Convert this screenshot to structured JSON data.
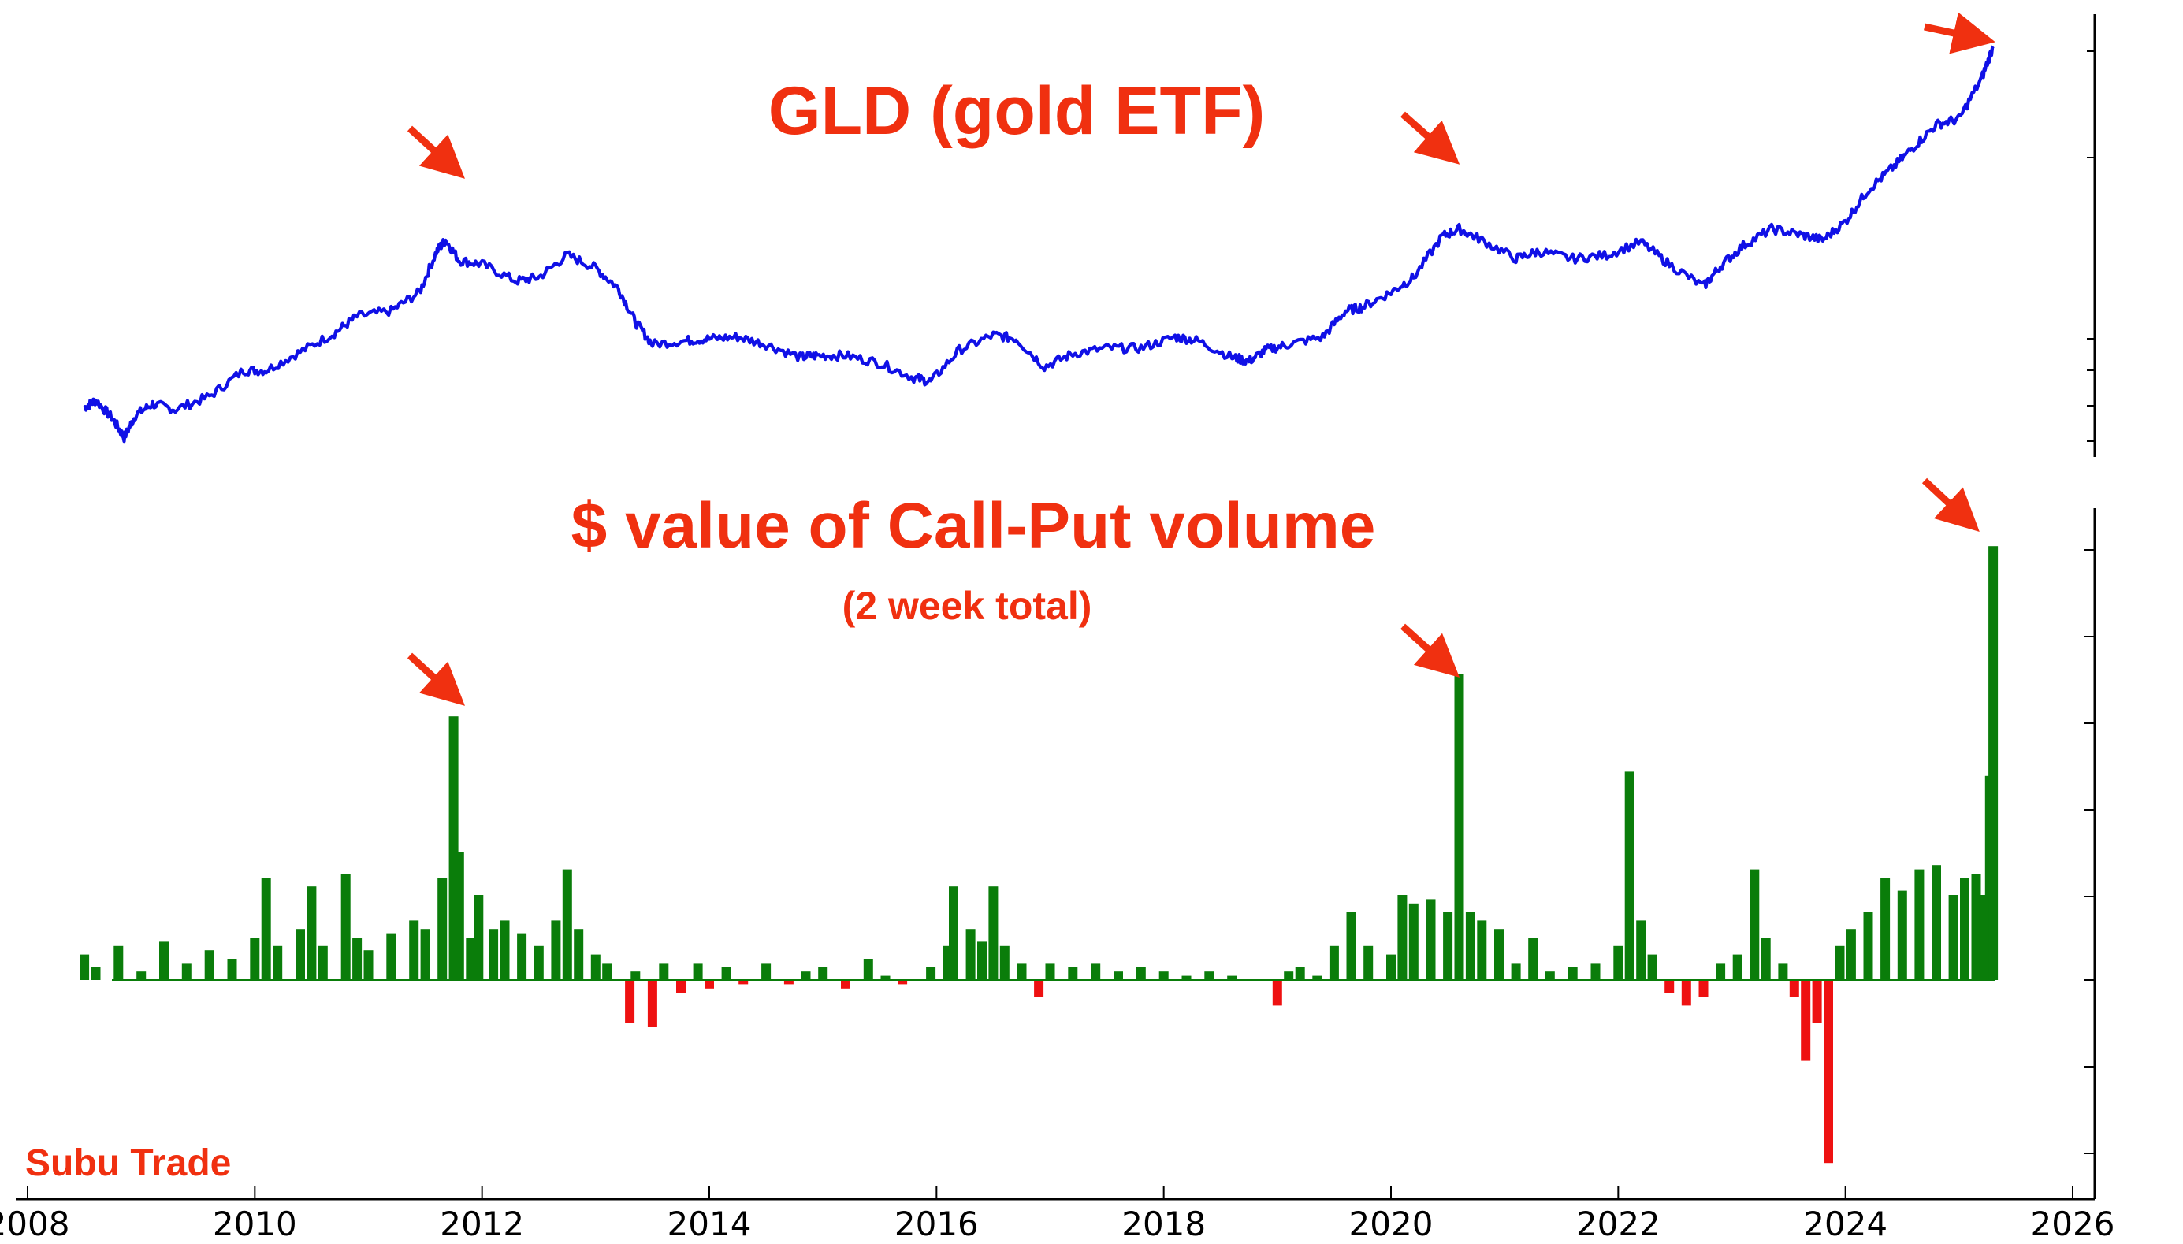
{
  "colors": {
    "price_line": "#1010e6",
    "positive_bar": "#0a7d0a",
    "negative_bar": "#ee1111",
    "annotation": "#f03010",
    "axis": "#000000"
  },
  "chart_data": [
    {
      "type": "line",
      "title": "GLD (gold ETF)",
      "xlabel": "",
      "ylabel": "",
      "xlim": [
        2008,
        2026
      ],
      "grid": false,
      "series": [
        {
          "name": "",
          "x": [
            2008.5,
            2008.6,
            2008.75,
            2008.85,
            2008.95,
            2009.1,
            2009.3,
            2009.6,
            2009.9,
            2010.1,
            2010.4,
            2010.7,
            2010.9,
            2011.2,
            2011.45,
            2011.6,
            2011.68,
            2011.8,
            2012.0,
            2012.3,
            2012.5,
            2012.75,
            2013.0,
            2013.2,
            2013.35,
            2013.5,
            2013.8,
            2014.0,
            2014.25,
            2014.5,
            2014.8,
            2014.95,
            2015.2,
            2015.5,
            2015.8,
            2015.95,
            2016.2,
            2016.5,
            2016.7,
            2016.95,
            2017.2,
            2017.5,
            2017.8,
            2018.1,
            2018.3,
            2018.6,
            2018.75,
            2018.9,
            2019.1,
            2019.4,
            2019.6,
            2019.75,
            2020.0,
            2020.2,
            2020.45,
            2020.6,
            2020.8,
            2021.1,
            2021.3,
            2021.6,
            2021.9,
            2022.2,
            2022.45,
            2022.75,
            2022.9,
            2023.1,
            2023.35,
            2023.6,
            2023.8,
            2024.0,
            2024.2,
            2024.4,
            2024.6,
            2024.8,
            2025.0,
            2025.2,
            2025.3
          ],
          "y": [
            88,
            92,
            82,
            72,
            84,
            90,
            87,
            94,
            108,
            108,
            118,
            128,
            137,
            140,
            150,
            172,
            178,
            167,
            165,
            156,
            158,
            170,
            163,
            152,
            134,
            122,
            124,
            125,
            126,
            122,
            115,
            116,
            116,
            112,
            104,
            102,
            119,
            127,
            125,
            110,
            117,
            120,
            120,
            126,
            124,
            115,
            113,
            119,
            122,
            126,
            140,
            142,
            150,
            158,
            180,
            184,
            178,
            168,
            172,
            168,
            170,
            177,
            165,
            153,
            164,
            175,
            184,
            181,
            178,
            188,
            205,
            216,
            228,
            240,
            243,
            265,
            282
          ]
        }
      ]
    },
    {
      "type": "bar",
      "title": "$ value of Call-Put volume",
      "subtitle": "(2 week total)",
      "xlabel": "",
      "ylabel": "",
      "xlim": [
        2008,
        2026
      ],
      "ylim": [
        -2.2,
        5.3
      ],
      "xticks": [
        "2008",
        "2010",
        "2012",
        "2014",
        "2016",
        "2018",
        "2020",
        "2022",
        "2024",
        "2026"
      ],
      "grid": false,
      "series": [
        {
          "name": "",
          "x": [
            2008.5,
            2008.6,
            2008.8,
            2009.0,
            2009.2,
            2009.4,
            2009.6,
            2009.8,
            2010.0,
            2010.1,
            2010.2,
            2010.4,
            2010.5,
            2010.6,
            2010.8,
            2010.9,
            2011.0,
            2011.2,
            2011.4,
            2011.5,
            2011.65,
            2011.75,
            2011.8,
            2011.9,
            2011.97,
            2012.1,
            2012.2,
            2012.35,
            2012.5,
            2012.65,
            2012.75,
            2012.85,
            2013.0,
            2013.1,
            2013.3,
            2013.35,
            2013.5,
            2013.6,
            2013.75,
            2013.9,
            2014.0,
            2014.15,
            2014.3,
            2014.5,
            2014.7,
            2014.85,
            2015.0,
            2015.2,
            2015.4,
            2015.55,
            2015.7,
            2015.95,
            2016.1,
            2016.15,
            2016.3,
            2016.4,
            2016.5,
            2016.6,
            2016.75,
            2016.9,
            2017.0,
            2017.2,
            2017.4,
            2017.6,
            2017.8,
            2018.0,
            2018.2,
            2018.4,
            2018.6,
            2018.8,
            2019.0,
            2019.1,
            2019.2,
            2019.35,
            2019.5,
            2019.65,
            2019.8,
            2020.0,
            2020.1,
            2020.2,
            2020.35,
            2020.5,
            2020.6,
            2020.7,
            2020.8,
            2020.95,
            2021.1,
            2021.25,
            2021.4,
            2021.6,
            2021.8,
            2022.0,
            2022.1,
            2022.2,
            2022.3,
            2022.45,
            2022.6,
            2022.75,
            2022.9,
            2023.05,
            2023.2,
            2023.3,
            2023.45,
            2023.55,
            2023.65,
            2023.75,
            2023.85,
            2023.95,
            2024.05,
            2024.2,
            2024.35,
            2024.5,
            2024.65,
            2024.8,
            2024.95,
            2025.05,
            2025.15,
            2025.22,
            2025.27,
            2025.3
          ],
          "y": [
            0.3,
            0.15,
            0.4,
            0.1,
            0.45,
            0.2,
            0.35,
            0.25,
            0.5,
            1.2,
            0.4,
            0.6,
            1.1,
            0.4,
            1.25,
            0.5,
            0.35,
            0.55,
            0.7,
            0.6,
            1.2,
            3.1,
            1.5,
            0.5,
            1.0,
            0.6,
            0.7,
            0.55,
            0.4,
            0.7,
            1.3,
            0.6,
            0.3,
            0.2,
            -0.5,
            0.1,
            -0.55,
            0.2,
            -0.15,
            0.2,
            -0.1,
            0.15,
            -0.05,
            0.2,
            -0.05,
            0.1,
            0.15,
            -0.1,
            0.25,
            0.05,
            -0.05,
            0.15,
            0.4,
            1.1,
            0.6,
            0.45,
            1.1,
            0.4,
            0.2,
            -0.2,
            0.2,
            0.15,
            0.2,
            0.1,
            0.15,
            0.1,
            0.05,
            0.1,
            0.05,
            0.0,
            -0.3,
            0.1,
            0.15,
            0.05,
            0.4,
            0.8,
            0.4,
            0.3,
            1.0,
            0.9,
            0.95,
            0.8,
            3.6,
            0.8,
            0.7,
            0.6,
            0.2,
            0.5,
            0.1,
            0.15,
            0.2,
            0.4,
            2.45,
            0.7,
            0.3,
            -0.15,
            -0.3,
            -0.2,
            0.2,
            0.3,
            1.3,
            0.5,
            0.2,
            -0.2,
            -0.95,
            -0.5,
            -2.15,
            0.4,
            0.6,
            0.8,
            1.2,
            1.05,
            1.3,
            1.35,
            1.0,
            1.2,
            1.25,
            1.0,
            2.4,
            5.1
          ]
        }
      ]
    }
  ],
  "annotations": {
    "watermark": "Subu Trade"
  }
}
